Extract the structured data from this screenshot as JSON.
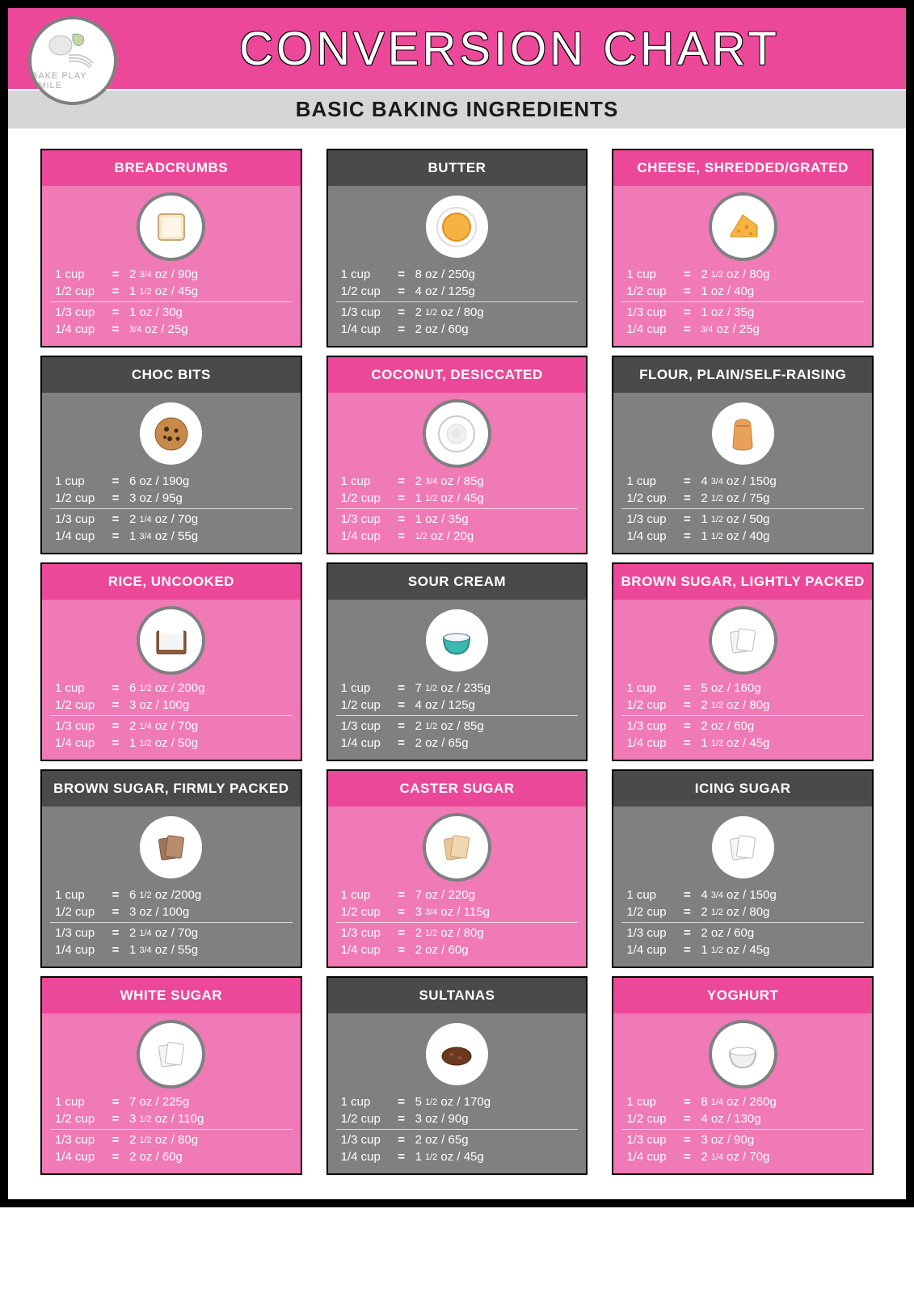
{
  "title": "CONVERSION CHART",
  "subtitle": "BASIC BAKING INGREDIENTS",
  "logo_text": "BAKE PLAY SMILE",
  "colors": {
    "pink_header": "#ec4899",
    "pink_body": "#ef7ab5",
    "gray_header": "#4a4a4a",
    "gray_body": "#808080",
    "border": "#000000",
    "subbar": "#d6d6d6",
    "icon_border": "#808080"
  },
  "cup_labels": [
    "1 cup",
    "1/2 cup",
    "1/3 cup",
    "1/4 cup"
  ],
  "cards": [
    {
      "name": "BREADCRUMBS",
      "theme": "pink",
      "icon": "bread",
      "rows": [
        {
          "cup": "1 cup",
          "val": "2 3/4 oz / 90g"
        },
        {
          "cup": "1/2 cup",
          "val": "1 1/2 oz / 45g"
        },
        {
          "cup": "1/3 cup",
          "val": "1 oz / 30g"
        },
        {
          "cup": "1/4 cup",
          "val": "3/4 oz / 25g"
        }
      ]
    },
    {
      "name": "BUTTER",
      "theme": "gray",
      "icon": "butter",
      "rows": [
        {
          "cup": "1 cup",
          "val": "8 oz / 250g"
        },
        {
          "cup": "1/2 cup",
          "val": "4 oz / 125g"
        },
        {
          "cup": "1/3 cup",
          "val": "2 1/2 oz / 80g"
        },
        {
          "cup": "1/4 cup",
          "val": "2 oz / 60g"
        }
      ]
    },
    {
      "name": "CHEESE, SHREDDED/GRATED",
      "theme": "pink",
      "icon": "cheese",
      "rows": [
        {
          "cup": "1 cup",
          "val": "2 1/2 oz / 80g"
        },
        {
          "cup": "1/2 cup",
          "val": "1 oz / 40g"
        },
        {
          "cup": "1/3 cup",
          "val": "1 oz / 35g"
        },
        {
          "cup": "1/4 cup",
          "val": "3/4 oz / 25g"
        }
      ]
    },
    {
      "name": "CHOC BITS",
      "theme": "gray",
      "icon": "cookie",
      "rows": [
        {
          "cup": "1 cup",
          "val": "6 oz / 190g"
        },
        {
          "cup": "1/2 cup",
          "val": "3 oz / 95g"
        },
        {
          "cup": "1/3 cup",
          "val": "2 1/4 oz / 70g"
        },
        {
          "cup": "1/4 cup",
          "val": "1 3/4 oz / 55g"
        }
      ]
    },
    {
      "name": "COCONUT, DESICCATED",
      "theme": "pink",
      "icon": "coconut",
      "rows": [
        {
          "cup": "1 cup",
          "val": "2 3/4 oz / 85g"
        },
        {
          "cup": "1/2 cup",
          "val": "1 1/2 oz / 45g"
        },
        {
          "cup": "1/3 cup",
          "val": "1 oz / 35g"
        },
        {
          "cup": "1/4 cup",
          "val": "1/2 oz / 20g"
        }
      ]
    },
    {
      "name": "FLOUR, PLAIN/SELF-RAISING",
      "theme": "gray",
      "icon": "flour",
      "rows": [
        {
          "cup": "1 cup",
          "val": "4 3/4 oz / 150g"
        },
        {
          "cup": "1/2 cup",
          "val": "2 1/2 oz / 75g"
        },
        {
          "cup": "1/3 cup",
          "val": "1 1/2 oz / 50g"
        },
        {
          "cup": "1/4 cup",
          "val": "1 1/2 oz / 40g"
        }
      ]
    },
    {
      "name": "RICE, UNCOOKED",
      "theme": "pink",
      "icon": "rice",
      "rows": [
        {
          "cup": "1 cup",
          "val": "6 1/2 oz / 200g"
        },
        {
          "cup": "1/2 cup",
          "val": "3 oz / 100g"
        },
        {
          "cup": "1/3 cup",
          "val": "2 1/4 oz / 70g"
        },
        {
          "cup": "1/4 cup",
          "val": "1 1/2 oz / 50g"
        }
      ]
    },
    {
      "name": "SOUR CREAM",
      "theme": "gray",
      "icon": "bowl",
      "rows": [
        {
          "cup": "1 cup",
          "val": "7 1/2 oz / 235g"
        },
        {
          "cup": "1/2 cup",
          "val": "4 oz / 125g"
        },
        {
          "cup": "1/3 cup",
          "val": "2 1/2 oz / 85g"
        },
        {
          "cup": "1/4 cup",
          "val": "2 oz / 65g"
        }
      ]
    },
    {
      "name": "BROWN SUGAR, LIGHTLY PACKED",
      "theme": "pink",
      "icon": "packet",
      "rows": [
        {
          "cup": "1 cup",
          "val": "5 oz / 160g"
        },
        {
          "cup": "1/2 cup",
          "val": "2 1/2 oz / 80g"
        },
        {
          "cup": "1/3 cup",
          "val": "2 oz / 60g"
        },
        {
          "cup": "1/4 cup",
          "val": "1 1/2 oz / 45g"
        }
      ]
    },
    {
      "name": "BROWN SUGAR, FIRMLY PACKED",
      "theme": "gray",
      "icon": "packet-brown",
      "rows": [
        {
          "cup": "1 cup",
          "val": "6 1/2 oz /200g"
        },
        {
          "cup": "1/2 cup",
          "val": "3 oz / 100g"
        },
        {
          "cup": "1/3 cup",
          "val": "2 1/4 oz / 70g"
        },
        {
          "cup": "1/4 cup",
          "val": "1 3/4 oz / 55g"
        }
      ]
    },
    {
      "name": "CASTER SUGAR",
      "theme": "pink",
      "icon": "packet-tan",
      "rows": [
        {
          "cup": "1 cup",
          "val": "7 oz / 220g"
        },
        {
          "cup": "1/2 cup",
          "val": "3 3/4 oz / 115g"
        },
        {
          "cup": "1/3 cup",
          "val": "2 1/2 oz / 80g"
        },
        {
          "cup": "1/4 cup",
          "val": "2 oz / 60g"
        }
      ]
    },
    {
      "name": "ICING SUGAR",
      "theme": "gray",
      "icon": "packet",
      "rows": [
        {
          "cup": "1 cup",
          "val": "4 3/4 oz / 150g"
        },
        {
          "cup": "1/2 cup",
          "val": "2 1/2 oz / 80g"
        },
        {
          "cup": "1/3 cup",
          "val": "2 oz / 60g"
        },
        {
          "cup": "1/4 cup",
          "val": "1 1/2 oz / 45g"
        }
      ]
    },
    {
      "name": "WHITE SUGAR",
      "theme": "pink",
      "icon": "packet",
      "rows": [
        {
          "cup": "1 cup",
          "val": "7 oz / 225g"
        },
        {
          "cup": "1/2 cup",
          "val": "3 1/2 oz / 110g"
        },
        {
          "cup": "1/3 cup",
          "val": "2 1/2 oz / 80g"
        },
        {
          "cup": "1/4 cup",
          "val": "2 oz / 60g"
        }
      ]
    },
    {
      "name": "SULTANAS",
      "theme": "gray",
      "icon": "sultana",
      "rows": [
        {
          "cup": "1 cup",
          "val": "5 1/2 oz / 170g"
        },
        {
          "cup": "1/2 cup",
          "val": "3 oz / 90g"
        },
        {
          "cup": "1/3 cup",
          "val": "2 oz / 65g"
        },
        {
          "cup": "1/4 cup",
          "val": "1 1/2 oz / 45g"
        }
      ]
    },
    {
      "name": "YOGHURT",
      "theme": "pink",
      "icon": "bowl-white",
      "rows": [
        {
          "cup": "1 cup",
          "val": "8 1/4 oz / 260g"
        },
        {
          "cup": "1/2 cup",
          "val": "4 oz / 130g"
        },
        {
          "cup": "1/3 cup",
          "val": "3 oz / 90g"
        },
        {
          "cup": "1/4 cup",
          "val": "2 1/4 oz / 70g"
        }
      ]
    }
  ]
}
